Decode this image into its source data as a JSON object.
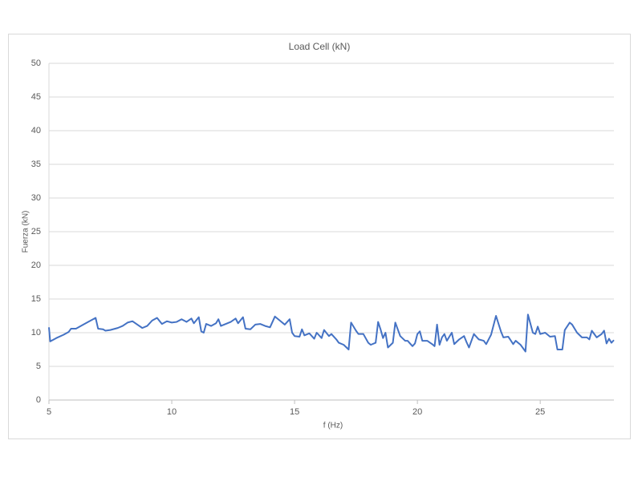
{
  "chart_data": {
    "type": "line",
    "title": "Load Cell (kN)",
    "x_label": "f (Hz)",
    "y_label": "Fuerza (kN)",
    "xlim": [
      5,
      28
    ],
    "xticks": [
      5,
      10,
      15,
      20,
      25
    ],
    "ylim": [
      0,
      50
    ],
    "yticks": [
      0,
      5,
      10,
      15,
      20,
      25,
      30,
      35,
      40,
      45,
      50
    ],
    "grid": true,
    "series": [
      {
        "name": "Load Cell (kN)",
        "color": "#4472c4",
        "x": [
          5.0,
          5.05,
          5.3,
          5.6,
          5.8,
          5.9,
          6.1,
          6.4,
          6.6,
          6.9,
          7.0,
          7.2,
          7.3,
          7.5,
          7.8,
          8.0,
          8.2,
          8.4,
          8.6,
          8.8,
          9.0,
          9.2,
          9.4,
          9.6,
          9.8,
          10.0,
          10.2,
          10.4,
          10.6,
          10.8,
          10.9,
          11.1,
          11.2,
          11.3,
          11.4,
          11.6,
          11.8,
          11.9,
          12.0,
          12.2,
          12.4,
          12.6,
          12.7,
          12.9,
          13.0,
          13.2,
          13.4,
          13.6,
          13.8,
          14.0,
          14.2,
          14.4,
          14.6,
          14.8,
          14.9,
          15.0,
          15.2,
          15.3,
          15.4,
          15.6,
          15.8,
          15.9,
          16.1,
          16.2,
          16.4,
          16.5,
          16.7,
          16.8,
          17.0,
          17.2,
          17.3,
          17.5,
          17.6,
          17.8,
          18.0,
          18.1,
          18.3,
          18.4,
          18.5,
          18.6,
          18.7,
          18.8,
          19.0,
          19.1,
          19.3,
          19.5,
          19.6,
          19.8,
          19.9,
          20.0,
          20.1,
          20.2,
          20.4,
          20.6,
          20.7,
          20.8,
          20.9,
          21.0,
          21.1,
          21.2,
          21.4,
          21.5,
          21.7,
          21.9,
          22.0,
          22.1,
          22.3,
          22.5,
          22.7,
          22.8,
          23.0,
          23.2,
          23.4,
          23.5,
          23.7,
          23.9,
          24.0,
          24.2,
          24.4,
          24.5,
          24.7,
          24.8,
          24.9,
          25.0,
          25.2,
          25.4,
          25.6,
          25.7,
          25.9,
          26.0,
          26.2,
          26.3,
          26.5,
          26.7,
          26.9,
          27.0,
          27.1,
          27.3,
          27.5,
          27.6,
          27.7,
          27.8,
          27.9,
          28.0
        ],
        "values": [
          10.8,
          8.7,
          9.2,
          9.7,
          10.1,
          10.6,
          10.6,
          11.2,
          11.6,
          12.2,
          10.6,
          10.5,
          10.3,
          10.4,
          10.7,
          11.0,
          11.5,
          11.7,
          11.2,
          10.7,
          11.0,
          11.8,
          12.2,
          11.3,
          11.7,
          11.5,
          11.6,
          12.0,
          11.6,
          12.1,
          11.4,
          12.3,
          10.2,
          10.0,
          11.3,
          11.0,
          11.4,
          12.0,
          11.0,
          11.3,
          11.6,
          12.1,
          11.4,
          12.3,
          10.6,
          10.5,
          11.2,
          11.3,
          11.0,
          10.8,
          12.4,
          11.8,
          11.2,
          12.0,
          10.0,
          9.5,
          9.4,
          10.5,
          9.6,
          9.9,
          9.1,
          10.0,
          9.2,
          10.4,
          9.5,
          9.8,
          9.0,
          8.5,
          8.2,
          7.5,
          11.5,
          10.3,
          9.8,
          9.8,
          8.5,
          8.2,
          8.5,
          11.6,
          10.5,
          9.2,
          10.0,
          7.8,
          8.5,
          11.5,
          9.5,
          8.8,
          8.8,
          8.0,
          8.4,
          9.8,
          10.2,
          8.8,
          8.8,
          8.3,
          8.0,
          11.2,
          8.2,
          9.3,
          9.8,
          8.8,
          10.0,
          8.3,
          9.0,
          9.5,
          8.6,
          7.8,
          9.8,
          9.0,
          8.8,
          8.3,
          9.7,
          12.5,
          10.2,
          9.3,
          9.4,
          8.3,
          8.8,
          8.2,
          7.2,
          12.7,
          10.0,
          9.8,
          10.9,
          9.8,
          10.0,
          9.4,
          9.5,
          7.5,
          7.5,
          10.4,
          11.5,
          11.2,
          10.0,
          9.3,
          9.3,
          9.0,
          10.3,
          9.3,
          9.8,
          10.3,
          8.4,
          9.1,
          8.5,
          8.9
        ]
      }
    ]
  }
}
